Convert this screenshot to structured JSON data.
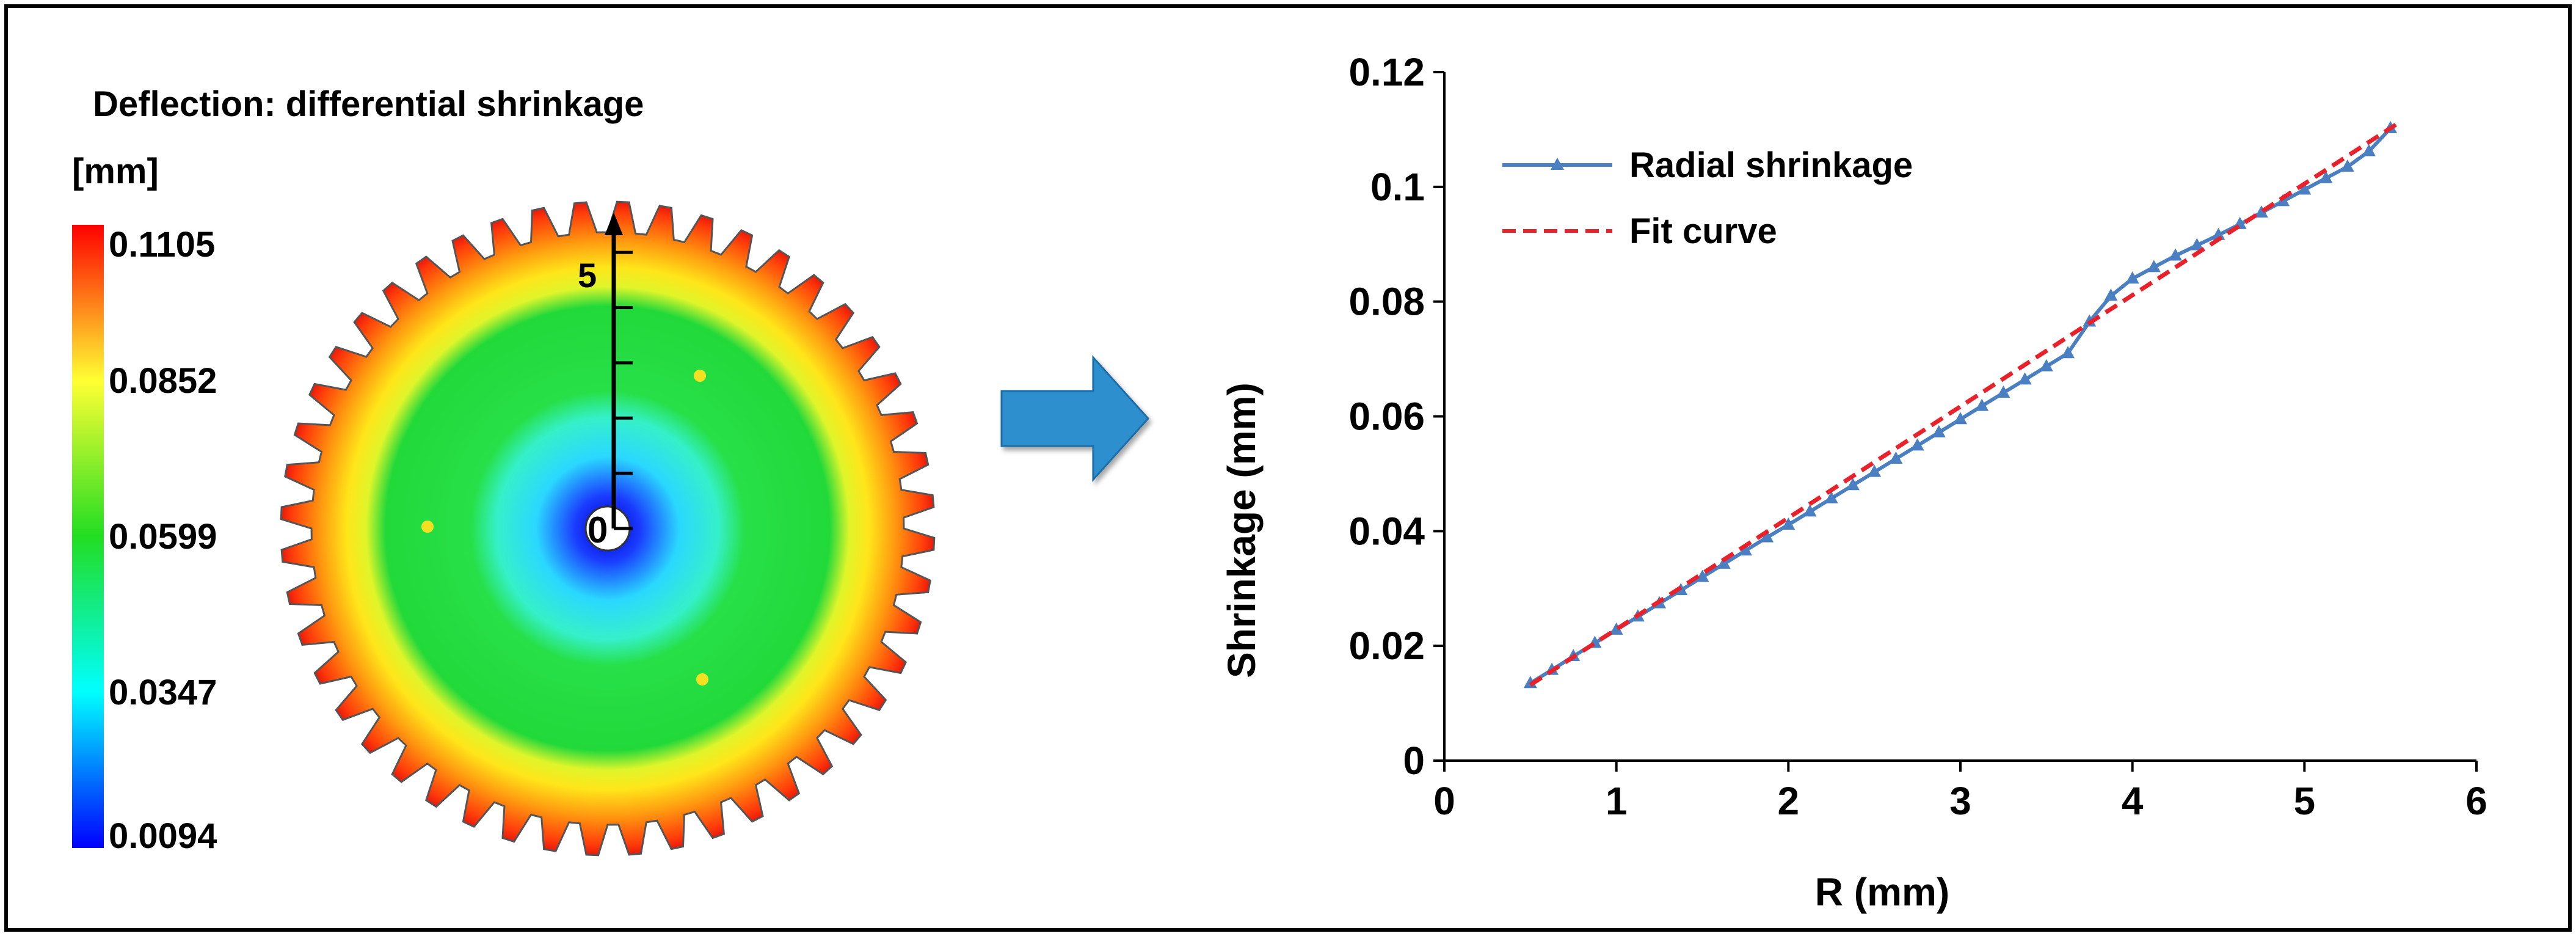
{
  "left_panel": {
    "title": "Deflection: differential shrinkage",
    "unit": "[mm]",
    "scale_ticks": [
      "0.1105",
      "0.0852",
      "0.0599",
      "0.0347",
      "0.0094"
    ],
    "scale_min": 0.0094,
    "scale_max": 0.1105,
    "gear_teeth": 48,
    "radius_axis": {
      "min_label": "0",
      "max_label": "5",
      "max_value": 5.5
    }
  },
  "arrow": {
    "color": "#2f8fce"
  },
  "colors": {
    "radial": "#4a7fc1",
    "fit": "#e8212a",
    "scale_stops": [
      "#0000ff",
      "#00ffff",
      "#22dd22",
      "#ffff33",
      "#ff0000"
    ]
  },
  "chart_data": {
    "type": "line",
    "xlabel": "R  (mm)",
    "ylabel": "Shrinkage  (mm)",
    "xlim": [
      0,
      6
    ],
    "ylim": [
      0,
      0.12
    ],
    "x_ticks": [
      0,
      1,
      2,
      3,
      4,
      5,
      6
    ],
    "x_tick_labels": [
      "0",
      "1",
      "2",
      "3",
      "4",
      "5",
      "6"
    ],
    "y_ticks": [
      0,
      0.02,
      0.04,
      0.06,
      0.08,
      0.1,
      0.12
    ],
    "y_tick_labels": [
      "0",
      "0.02",
      "0.04",
      "0.06",
      "0.08",
      "0.1",
      "0.12"
    ],
    "legend_position": "top-left",
    "series": [
      {
        "name": "Radial shrinkage",
        "style": "line-with-triangle-markers",
        "x": [
          0.5,
          0.625,
          0.75,
          0.875,
          1.0,
          1.125,
          1.25,
          1.375,
          1.5,
          1.625,
          1.75,
          1.875,
          2.0,
          2.125,
          2.25,
          2.375,
          2.5,
          2.625,
          2.75,
          2.875,
          3.0,
          3.125,
          3.25,
          3.375,
          3.5,
          3.625,
          3.75,
          3.875,
          4.0,
          4.125,
          4.25,
          4.375,
          4.5,
          4.625,
          4.75,
          4.875,
          5.0,
          5.125,
          5.25,
          5.375,
          5.5
        ],
        "values": [
          0.0135,
          0.0158,
          0.0182,
          0.0205,
          0.0228,
          0.0251,
          0.0274,
          0.0297,
          0.032,
          0.0343,
          0.0366,
          0.0389,
          0.0411,
          0.0434,
          0.0457,
          0.048,
          0.0503,
          0.0526,
          0.0549,
          0.0572,
          0.0595,
          0.0618,
          0.0641,
          0.0664,
          0.0687,
          0.071,
          0.0765,
          0.081,
          0.084,
          0.086,
          0.088,
          0.0898,
          0.0916,
          0.0935,
          0.0955,
          0.0975,
          0.0995,
          0.1015,
          0.1035,
          0.1062,
          0.1102
        ]
      },
      {
        "name": "Fit curve",
        "style": "dashed",
        "x": [
          0.5,
          5.55
        ],
        "values": [
          0.0132,
          0.1112
        ]
      }
    ]
  }
}
